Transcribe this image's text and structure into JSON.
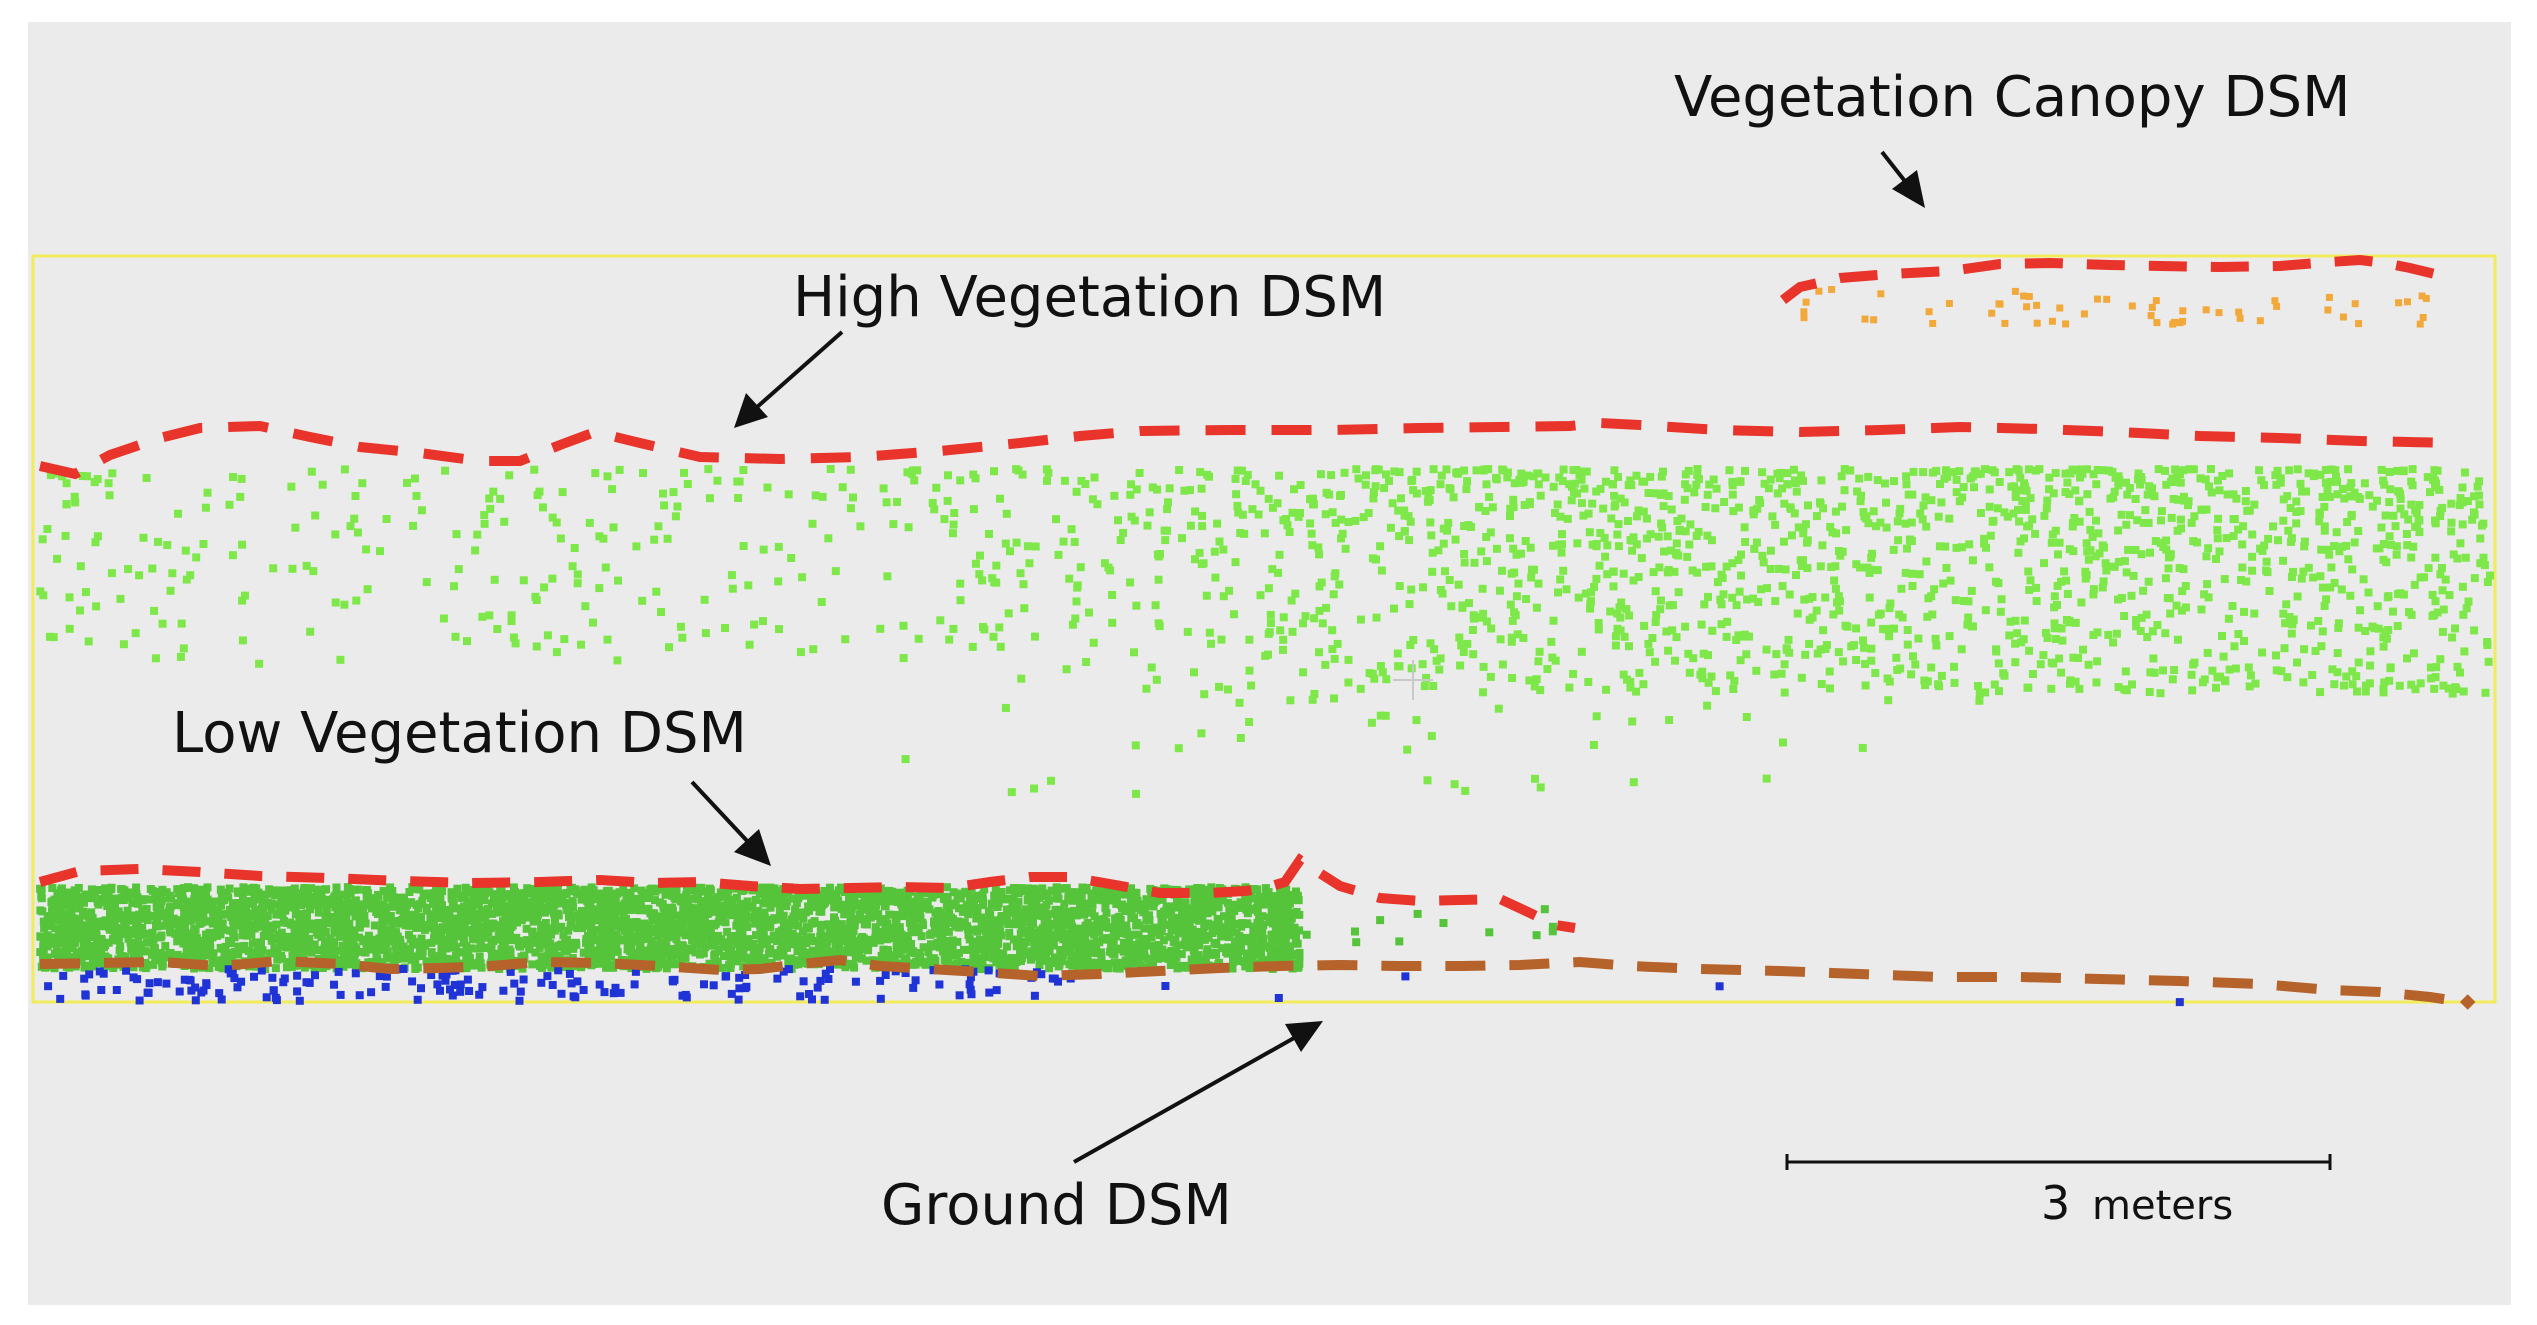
{
  "labels": {
    "canopy": "Vegetation Canopy DSM",
    "high_veg": "High Vegetation DSM",
    "low_veg": "Low Vegetation DSM",
    "ground": "Ground DSM"
  },
  "scale_bar": {
    "value": "3",
    "unit": "meters"
  },
  "colors": {
    "background": "#ebebeb",
    "frame": "#f2ec5a",
    "dsm_line": "#e8342a",
    "ground_line": "#b5622b",
    "high_veg_points": "#7ee84a",
    "low_veg_points": "#55c43a",
    "ground_points": "#1f33d6",
    "canopy_points": "#f2a93b",
    "arrow": "#111111"
  },
  "icons": [
    "crosshair-icon"
  ]
}
